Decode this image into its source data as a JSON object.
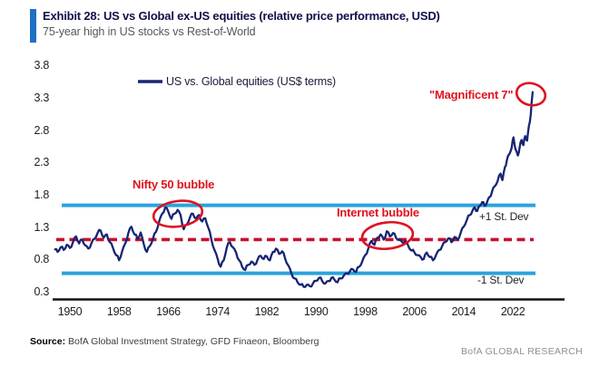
{
  "header": {
    "exhibit_title": "Exhibit 28: US vs Global ex-US equities (relative price performance, USD)",
    "subtitle": "75-year high in US stocks vs Rest-of-World",
    "accent_color": "#1f6fc4"
  },
  "legend": {
    "series_label": "US vs. Global equities (US$ terms)"
  },
  "annotations": {
    "nifty_label": "Nifty 50 bubble",
    "internet_label": "Internet bubble",
    "mag7_label": "\"Magnificent 7\"",
    "plus1_label": "+1 St. Dev",
    "minus1_label": "-1 St. Dev",
    "annotation_color": "#e0131f"
  },
  "footer": {
    "source_label": "Source:",
    "source_text": " BofA Global Investment Strategy, GFD Finaeon, Bloomberg",
    "brand": "BofA GLOBAL RESEARCH"
  },
  "chart_data": {
    "type": "line",
    "title": "US vs Global ex-US equities (relative price performance, USD)",
    "xlabel": "",
    "ylabel": "",
    "x_ticks": [
      1950,
      1958,
      1966,
      1974,
      1982,
      1990,
      1998,
      2006,
      2014,
      2022
    ],
    "y_ticks": [
      0.3,
      0.8,
      1.3,
      1.8,
      2.3,
      2.8,
      3.3,
      3.8
    ],
    "xlim": [
      1947.5,
      2026
    ],
    "ylim": [
      0.2,
      3.9
    ],
    "grid": false,
    "legend_position": "top-center",
    "mean_line": 1.12,
    "plus1_stdev": 1.65,
    "minus1_stdev": 0.6,
    "line_color": "#172572",
    "stdev_band_color": "#2aa3dc",
    "mean_line_color": "#c8102e",
    "highlight_regions": [
      {
        "label": "Nifty 50 bubble",
        "center_year": 1967.5,
        "peak_value": 1.62
      },
      {
        "label": "Internet bubble",
        "center_year": 2001.5,
        "peak_value": 1.25
      },
      {
        "label": "\"Magnificent 7\"",
        "center_year": 2025,
        "peak_value": 3.4
      }
    ],
    "series": [
      {
        "name": "US vs. Global equities (US$ terms)",
        "points": [
          [
            1947.6,
            0.97
          ],
          [
            1948.0,
            0.93
          ],
          [
            1948.5,
            1.0
          ],
          [
            1949.0,
            0.96
          ],
          [
            1949.5,
            1.04
          ],
          [
            1950.0,
            0.99
          ],
          [
            1950.5,
            1.08
          ],
          [
            1951.0,
            1.17
          ],
          [
            1951.5,
            1.06
          ],
          [
            1952.0,
            1.12
          ],
          [
            1952.5,
            1.03
          ],
          [
            1953.0,
            0.98
          ],
          [
            1953.5,
            1.06
          ],
          [
            1954.0,
            1.13
          ],
          [
            1954.5,
            1.22
          ],
          [
            1955.0,
            1.26
          ],
          [
            1955.5,
            1.15
          ],
          [
            1956.0,
            1.2
          ],
          [
            1956.5,
            1.08
          ],
          [
            1957.0,
            0.99
          ],
          [
            1957.5,
            0.88
          ],
          [
            1958.0,
            0.8
          ],
          [
            1958.5,
            0.94
          ],
          [
            1959.0,
            1.06
          ],
          [
            1959.5,
            1.22
          ],
          [
            1960.0,
            1.32
          ],
          [
            1960.5,
            1.2
          ],
          [
            1961.0,
            1.13
          ],
          [
            1961.5,
            1.23
          ],
          [
            1962.0,
            1.05
          ],
          [
            1962.5,
            0.93
          ],
          [
            1963.0,
            1.02
          ],
          [
            1963.5,
            1.13
          ],
          [
            1964.0,
            1.24
          ],
          [
            1964.5,
            1.4
          ],
          [
            1965.0,
            1.52
          ],
          [
            1965.5,
            1.62
          ],
          [
            1966.0,
            1.55
          ],
          [
            1966.5,
            1.44
          ],
          [
            1967.0,
            1.52
          ],
          [
            1967.5,
            1.58
          ],
          [
            1968.0,
            1.5
          ],
          [
            1968.5,
            1.28
          ],
          [
            1969.0,
            1.35
          ],
          [
            1969.5,
            1.46
          ],
          [
            1970.0,
            1.52
          ],
          [
            1970.5,
            1.44
          ],
          [
            1971.0,
            1.5
          ],
          [
            1971.5,
            1.4
          ],
          [
            1972.0,
            1.45
          ],
          [
            1972.5,
            1.3
          ],
          [
            1973.0,
            1.12
          ],
          [
            1973.5,
            0.96
          ],
          [
            1974.0,
            0.83
          ],
          [
            1974.5,
            0.7
          ],
          [
            1975.0,
            0.8
          ],
          [
            1975.5,
            1.0
          ],
          [
            1976.0,
            1.08
          ],
          [
            1976.5,
            1.0
          ],
          [
            1977.0,
            0.92
          ],
          [
            1977.5,
            0.8
          ],
          [
            1978.0,
            0.7
          ],
          [
            1978.5,
            0.65
          ],
          [
            1979.0,
            0.73
          ],
          [
            1979.5,
            0.78
          ],
          [
            1980.0,
            0.73
          ],
          [
            1980.5,
            0.81
          ],
          [
            1981.0,
            0.87
          ],
          [
            1981.5,
            0.82
          ],
          [
            1982.0,
            0.86
          ],
          [
            1982.5,
            0.8
          ],
          [
            1983.0,
            0.93
          ],
          [
            1983.5,
            0.98
          ],
          [
            1984.0,
            0.9
          ],
          [
            1984.5,
            0.94
          ],
          [
            1985.0,
            0.82
          ],
          [
            1985.5,
            0.72
          ],
          [
            1986.0,
            0.6
          ],
          [
            1986.5,
            0.52
          ],
          [
            1987.0,
            0.46
          ],
          [
            1987.5,
            0.42
          ],
          [
            1988.0,
            0.39
          ],
          [
            1988.5,
            0.42
          ],
          [
            1989.0,
            0.4
          ],
          [
            1989.5,
            0.44
          ],
          [
            1990.0,
            0.48
          ],
          [
            1990.5,
            0.53
          ],
          [
            1991.0,
            0.48
          ],
          [
            1991.5,
            0.44
          ],
          [
            1992.0,
            0.48
          ],
          [
            1992.5,
            0.53
          ],
          [
            1993.0,
            0.5
          ],
          [
            1993.5,
            0.46
          ],
          [
            1994.0,
            0.52
          ],
          [
            1994.5,
            0.56
          ],
          [
            1995.0,
            0.6
          ],
          [
            1995.5,
            0.63
          ],
          [
            1996.0,
            0.66
          ],
          [
            1996.5,
            0.62
          ],
          [
            1997.0,
            0.7
          ],
          [
            1997.5,
            0.78
          ],
          [
            1998.0,
            0.88
          ],
          [
            1998.5,
            0.98
          ],
          [
            1999.0,
            1.1
          ],
          [
            1999.5,
            1.04
          ],
          [
            2000.0,
            1.15
          ],
          [
            2000.5,
            1.2
          ],
          [
            2001.0,
            1.12
          ],
          [
            2001.5,
            1.25
          ],
          [
            2002.0,
            1.17
          ],
          [
            2002.5,
            1.22
          ],
          [
            2003.0,
            1.15
          ],
          [
            2003.5,
            1.12
          ],
          [
            2004.0,
            1.08
          ],
          [
            2004.5,
            1.1
          ],
          [
            2005.0,
            1.02
          ],
          [
            2005.5,
            0.95
          ],
          [
            2006.0,
            0.92
          ],
          [
            2006.5,
            0.88
          ],
          [
            2007.0,
            0.85
          ],
          [
            2007.5,
            0.82
          ],
          [
            2008.0,
            0.92
          ],
          [
            2008.5,
            0.85
          ],
          [
            2009.0,
            0.8
          ],
          [
            2009.5,
            0.88
          ],
          [
            2010.0,
            0.96
          ],
          [
            2010.5,
            1.02
          ],
          [
            2011.0,
            1.08
          ],
          [
            2011.5,
            1.14
          ],
          [
            2012.0,
            1.08
          ],
          [
            2012.5,
            1.16
          ],
          [
            2013.0,
            1.12
          ],
          [
            2013.5,
            1.22
          ],
          [
            2014.0,
            1.32
          ],
          [
            2014.5,
            1.42
          ],
          [
            2015.0,
            1.5
          ],
          [
            2015.4,
            1.56
          ],
          [
            2015.8,
            1.62
          ],
          [
            2016.2,
            1.56
          ],
          [
            2016.6,
            1.64
          ],
          [
            2017.0,
            1.7
          ],
          [
            2017.4,
            1.64
          ],
          [
            2017.8,
            1.7
          ],
          [
            2018.2,
            1.78
          ],
          [
            2018.6,
            1.86
          ],
          [
            2019.0,
            1.94
          ],
          [
            2019.5,
            2.02
          ],
          [
            2020.0,
            2.14
          ],
          [
            2020.3,
            2.04
          ],
          [
            2020.7,
            2.24
          ],
          [
            2021.0,
            2.34
          ],
          [
            2021.4,
            2.44
          ],
          [
            2021.8,
            2.54
          ],
          [
            2022.1,
            2.7
          ],
          [
            2022.4,
            2.52
          ],
          [
            2022.8,
            2.42
          ],
          [
            2023.1,
            2.55
          ],
          [
            2023.4,
            2.66
          ],
          [
            2023.7,
            2.58
          ],
          [
            2024.0,
            2.72
          ],
          [
            2024.3,
            2.65
          ],
          [
            2024.6,
            2.88
          ],
          [
            2024.9,
            3.05
          ],
          [
            2025.2,
            3.4
          ]
        ]
      }
    ]
  }
}
